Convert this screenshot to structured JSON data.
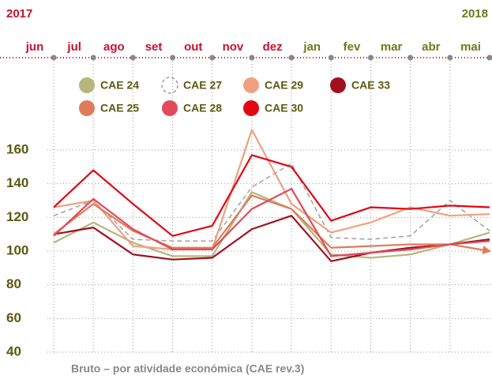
{
  "chart_data": {
    "type": "line",
    "title_left": "2017",
    "title_right": "2018",
    "title_left_color": "#c8102e",
    "title_right_color": "#6b7a1a",
    "footer": "Bruto – por atividade económica (CAE rev.3)",
    "categories": [
      "jun",
      "jul",
      "ago",
      "set",
      "out",
      "nov",
      "dez",
      "jan",
      "fev",
      "mar",
      "abr",
      "mai"
    ],
    "category_colors": [
      "#c8102e",
      "#c8102e",
      "#c8102e",
      "#c8102e",
      "#c8102e",
      "#c8102e",
      "#c8102e",
      "#6b7a1a",
      "#6b7a1a",
      "#6b7a1a",
      "#6b7a1a",
      "#6b7a1a"
    ],
    "ylim": [
      40,
      160
    ],
    "yticks": [
      40,
      60,
      80,
      100,
      120,
      140,
      160
    ],
    "grid": true,
    "series": [
      {
        "name": "CAE 24",
        "color": "#b5b77f",
        "values": [
          105,
          117,
          105,
          97,
          97,
          135,
          125,
          98,
          96,
          98,
          104,
          111
        ]
      },
      {
        "name": "CAE 27",
        "color": "#a0a0a0",
        "dashed": true,
        "values": [
          121,
          130,
          107,
          106,
          106,
          138,
          152,
          108,
          107,
          109,
          130,
          112
        ]
      },
      {
        "name": "CAE 29",
        "color": "#f0a080",
        "values": [
          126,
          130,
          103,
          101,
          101,
          172,
          128,
          111,
          117,
          126,
          121,
          122
        ]
      },
      {
        "name": "CAE 33",
        "color": "#a01020",
        "values": [
          110,
          114,
          98,
          95,
          96,
          113,
          121,
          94,
          99,
          102,
          104,
          107
        ]
      },
      {
        "name": "CAE 25",
        "color": "#e07b5a",
        "end_arrow": true,
        "values": [
          110,
          128,
          112,
          102,
          102,
          133,
          125,
          102,
          103,
          104,
          104,
          100
        ]
      },
      {
        "name": "CAE 28",
        "color": "#e04a5a",
        "values": [
          109,
          131,
          113,
          101,
          101,
          125,
          137,
          97,
          99,
          101,
          104,
          106
        ]
      },
      {
        "name": "CAE 30",
        "color": "#e30613",
        "values": [
          126,
          148,
          128,
          109,
          115,
          157,
          150,
          118,
          126,
          125,
          127,
          126
        ]
      }
    ]
  }
}
